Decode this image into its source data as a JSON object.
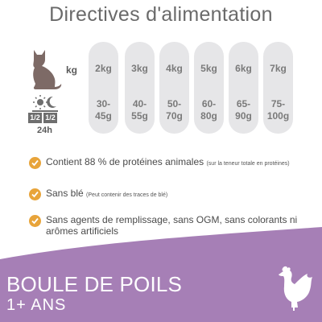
{
  "title": "Directives d'alimentation",
  "feeding": {
    "weight_label": "kg",
    "portion_halves": [
      "1/2",
      "1/2"
    ],
    "period_label": "24h",
    "columns": [
      {
        "weight": "2kg",
        "grams": [
          "30-",
          "45g"
        ]
      },
      {
        "weight": "3kg",
        "grams": [
          "40-",
          "55g"
        ]
      },
      {
        "weight": "4kg",
        "grams": [
          "50-",
          "70g"
        ]
      },
      {
        "weight": "5kg",
        "grams": [
          "60-",
          "80g"
        ]
      },
      {
        "weight": "6kg",
        "grams": [
          "65-",
          "90g"
        ]
      },
      {
        "weight": "7kg",
        "grams": [
          "75-",
          "100g"
        ]
      }
    ]
  },
  "features": [
    {
      "text": "Contient 88 % de protéines animales",
      "note": "(sur la teneur totale en protéines)"
    },
    {
      "text": "Sans blé",
      "note": "(Peut contenir des traces de blé)"
    },
    {
      "text": "Sans agents de remplissage, sans OGM, sans colorants ni arômes artificiels",
      "note": ""
    }
  ],
  "product": {
    "name": "BOULE DE POILS",
    "age": "1+ ANS"
  },
  "colors": {
    "accent": "#e8a43a",
    "band": "#a67fb6",
    "pill": "#e6e6e8",
    "icon": "#7d6a66"
  },
  "icons": [
    "cat-icon",
    "sun-moon-icon",
    "check-icon",
    "chicken-icon"
  ]
}
